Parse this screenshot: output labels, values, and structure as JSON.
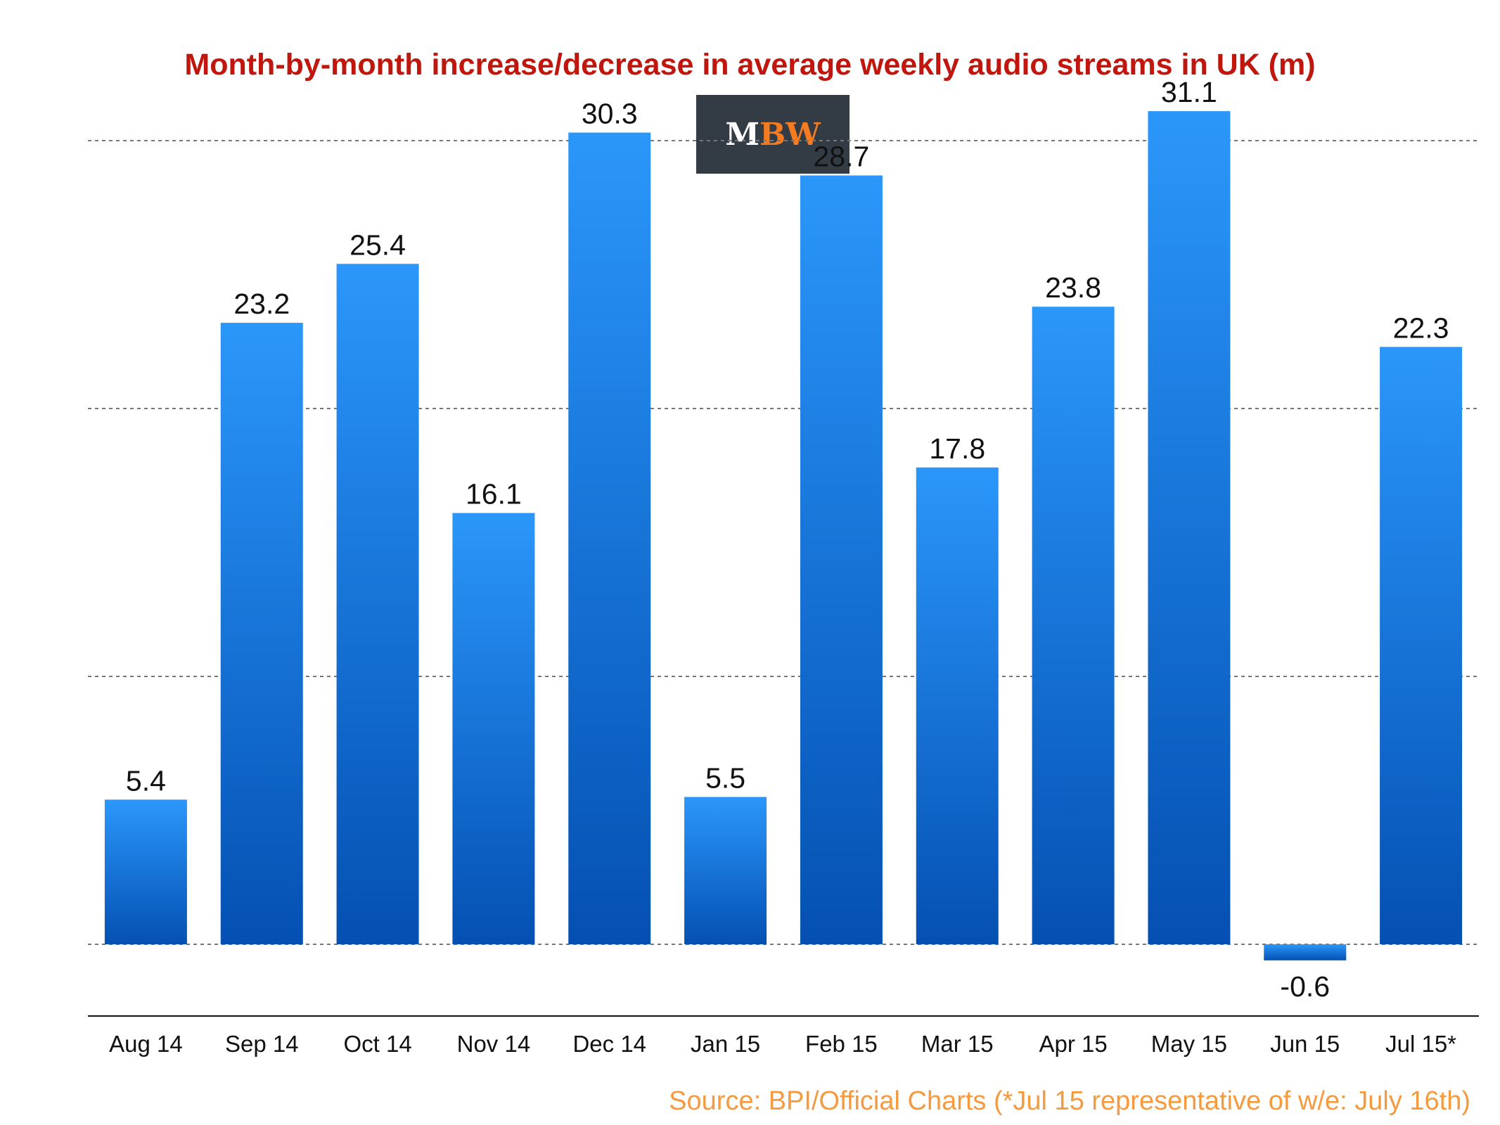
{
  "chart_data": {
    "type": "bar",
    "title": "Month-by-month increase/decrease in average weekly audio streams in UK (m)",
    "categories": [
      "Aug 14",
      "Sep 14",
      "Oct 14",
      "Nov 14",
      "Dec 14",
      "Jan 15",
      "Feb 15",
      "Mar 15",
      "Apr 15",
      "May 15",
      "Jun 15",
      "Jul 15*"
    ],
    "values": [
      5.4,
      23.2,
      25.4,
      16.1,
      30.3,
      5.5,
      28.7,
      17.8,
      23.8,
      31.1,
      -0.6,
      22.3
    ],
    "value_labels": [
      "5.4",
      "23.2",
      "25.4",
      "16.1",
      "30.3",
      "5.5",
      "28.7",
      "17.8",
      "23.8",
      "31.1",
      "-0.6",
      "22.3"
    ],
    "ylim": [
      -3,
      35
    ],
    "gridlines": [
      0,
      10,
      20,
      30
    ],
    "grid": true,
    "bar_color_top": "#2b97fb",
    "bar_color_bottom": "#0450b2",
    "xlabel": "",
    "ylabel": ""
  },
  "logo": {
    "m": "M",
    "bw": "BW"
  },
  "source": "Source: BPI/Official Charts (*Jul 15 representative of w/e: July 16th)"
}
